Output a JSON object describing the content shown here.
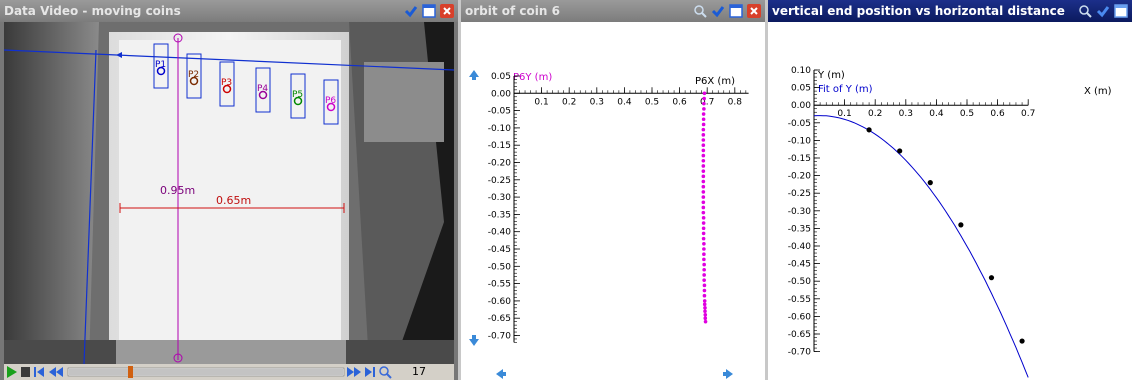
{
  "video_panel": {
    "title": "Data Video - moving coins",
    "measure_vertical": "0.95m",
    "measure_horizontal": "0.65m",
    "coin_labels": [
      "P1",
      "P2",
      "P3",
      "P4",
      "P5",
      "P6"
    ],
    "frame_number": "17"
  },
  "orbit_panel": {
    "title": "orbit of coin 6",
    "y_axis_label": "P6Y (m)",
    "x_axis_label": "P6X (m)"
  },
  "fit_panel": {
    "title": "vertical end position vs horizontal distance",
    "y_axis_label": "Y (m)",
    "fit_label": "Fit of Y (m)",
    "x_axis_label": "X (m)"
  },
  "colors": {
    "title_gray": "#8a8a8a",
    "title_navy": "#0b1a5e",
    "orbit_points": "#e000e0",
    "fit_line": "#0000cc",
    "coin_colors": [
      "#0000cc",
      "#7a2a00",
      "#cc0000",
      "#990099",
      "#008800",
      "#cc00cc"
    ]
  },
  "chart_data": [
    {
      "type": "scatter",
      "title": "orbit of coin 6",
      "xlabel": "P6X (m)",
      "ylabel": "P6Y (m)",
      "xlim": [
        0,
        0.85
      ],
      "ylim": [
        -0.72,
        0.05
      ],
      "x_ticks": [
        "0.1",
        "0.2",
        "0.3",
        "0.4",
        "0.5",
        "0.6",
        "0.7",
        "0.8"
      ],
      "y_ticks": [
        "0.05",
        "0.00",
        "-0.05",
        "-0.10",
        "-0.15",
        "-0.20",
        "-0.25",
        "-0.30",
        "-0.35",
        "-0.40",
        "-0.45",
        "-0.50",
        "-0.55",
        "-0.60",
        "-0.65",
        "-0.70"
      ],
      "series": [
        {
          "name": "P6Y (m)",
          "color": "#e000e0",
          "x": [
            0.69,
            0.689,
            0.688,
            0.688,
            0.687,
            0.687,
            0.687,
            0.686,
            0.686,
            0.686,
            0.686,
            0.686,
            0.686,
            0.686,
            0.686,
            0.686,
            0.686,
            0.686,
            0.686,
            0.686,
            0.686,
            0.686,
            0.686,
            0.686,
            0.687,
            0.687,
            0.687,
            0.687,
            0.687,
            0.688,
            0.688,
            0.688,
            0.688,
            0.689,
            0.689,
            0.689,
            0.689,
            0.69,
            0.69,
            0.69,
            0.691,
            0.691,
            0.692,
            0.692,
            0.693,
            0.693,
            0.694
          ],
          "y": [
            0.0,
            -0.015,
            -0.03,
            -0.045,
            -0.06,
            -0.075,
            -0.09,
            -0.105,
            -0.12,
            -0.135,
            -0.15,
            -0.165,
            -0.18,
            -0.195,
            -0.21,
            -0.225,
            -0.24,
            -0.255,
            -0.27,
            -0.285,
            -0.3,
            -0.315,
            -0.33,
            -0.345,
            -0.36,
            -0.375,
            -0.39,
            -0.405,
            -0.42,
            -0.435,
            -0.45,
            -0.465,
            -0.48,
            -0.495,
            -0.51,
            -0.525,
            -0.54,
            -0.555,
            -0.57,
            -0.585,
            -0.6,
            -0.61,
            -0.62,
            -0.63,
            -0.64,
            -0.65,
            -0.66
          ]
        }
      ]
    },
    {
      "type": "scatter",
      "title": "vertical end position vs horizontal distance",
      "xlabel": "X (m)",
      "ylabel": "Y (m)",
      "xlim": [
        0,
        0.7
      ],
      "ylim": [
        -0.7,
        0.1
      ],
      "x_ticks": [
        "0.1",
        "0.2",
        "0.3",
        "0.4",
        "0.5",
        "0.6",
        "0.7"
      ],
      "y_ticks": [
        "0.10",
        "0.05",
        "0.00",
        "-0.05",
        "-0.10",
        "-0.15",
        "-0.20",
        "-0.25",
        "-0.30",
        "-0.35",
        "-0.40",
        "-0.45",
        "-0.50",
        "-0.55",
        "-0.60",
        "-0.65",
        "-0.70"
      ],
      "series": [
        {
          "name": "Y (m)",
          "color": "#000000",
          "x": [
            0.18,
            0.28,
            0.38,
            0.48,
            0.58,
            0.68
          ],
          "y": [
            -0.07,
            -0.13,
            -0.22,
            -0.34,
            -0.49,
            -0.67
          ]
        },
        {
          "name": "Fit of Y (m)",
          "color": "#0000cc",
          "fit": {
            "a": -1.6,
            "b": 0.058,
            "c": -0.03
          }
        }
      ]
    }
  ]
}
